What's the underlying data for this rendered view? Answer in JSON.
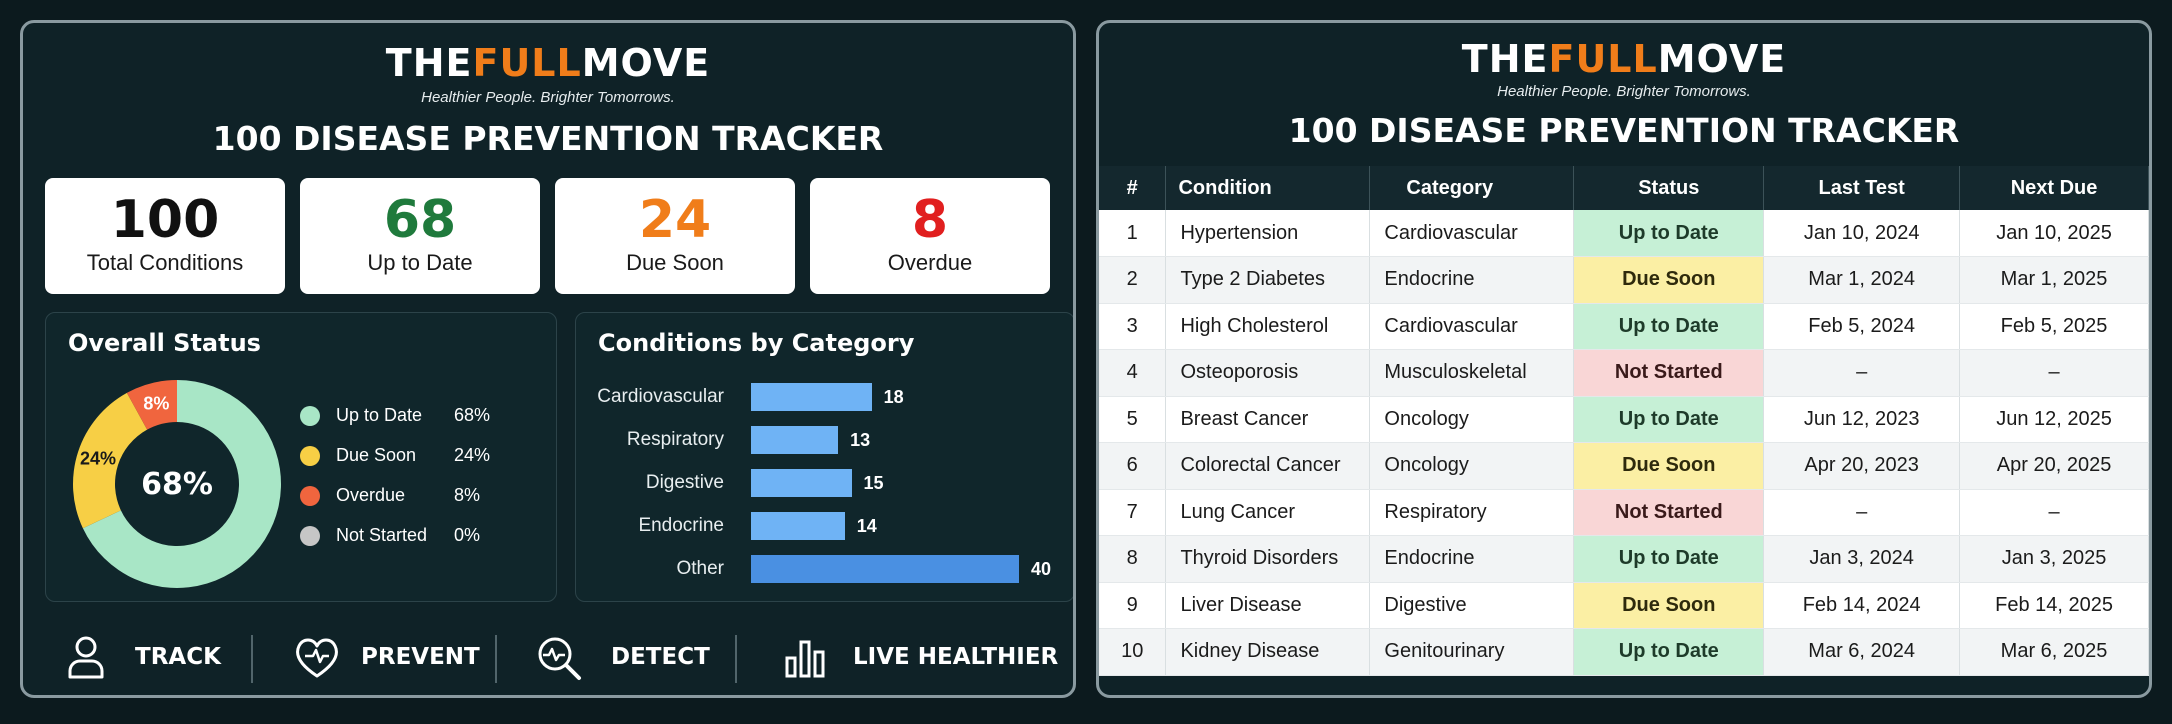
{
  "brand": {
    "part1": "THE",
    "part2": "FULL",
    "part3": "MOVE",
    "tagline": "Healthier People. Brighter Tomorrows."
  },
  "title": "100 DISEASE PREVENTION TRACKER",
  "colors": {
    "accent": "#f07d1a",
    "up_to_date": "#a8e6c6",
    "due_soon": "#f7cf45",
    "overdue": "#f0653e",
    "not_started": "#c6c6c6",
    "bar": "#6fb3f5"
  },
  "stats": [
    {
      "value": "100",
      "label": "Total Conditions",
      "color": "#111111"
    },
    {
      "value": "68",
      "label": "Up to Date",
      "color": "#1f7a3c"
    },
    {
      "value": "24",
      "label": "Due Soon",
      "color": "#f07d1a"
    },
    {
      "value": "8",
      "label": "Overdue",
      "color": "#e11f1f"
    }
  ],
  "overall": {
    "title": "Overall Status",
    "center_label": "68%",
    "legend": [
      {
        "name": "Up to Date",
        "value": "68%",
        "color": "#a8e6c6"
      },
      {
        "name": "Due Soon",
        "value": "24%",
        "color": "#f7cf45"
      },
      {
        "name": "Overdue",
        "value": "8%",
        "color": "#f0653e"
      },
      {
        "name": "Not Started",
        "value": "0%",
        "color": "#c6c6c6"
      }
    ],
    "slice_labels": [
      "24%",
      "8%"
    ]
  },
  "chart_data": [
    {
      "type": "pie",
      "title": "Overall Status",
      "categories": [
        "Up to Date",
        "Due Soon",
        "Overdue",
        "Not Started"
      ],
      "values": [
        68,
        24,
        8,
        0
      ],
      "colors": [
        "#a8e6c6",
        "#f7cf45",
        "#f0653e",
        "#c6c6c6"
      ],
      "legend": "right"
    },
    {
      "type": "bar",
      "title": "Conditions by Category",
      "categories": [
        "Cardiovascular",
        "Respiratory",
        "Digestive",
        "Endocrine",
        "Other"
      ],
      "values": [
        18,
        13,
        15,
        14,
        40
      ],
      "orientation": "horizontal",
      "xlim": [
        0,
        40
      ]
    }
  ],
  "footer": [
    {
      "label": "TRACK",
      "icon": "person-icon"
    },
    {
      "label": "PREVENT",
      "icon": "heart-pulse-icon"
    },
    {
      "label": "DETECT",
      "icon": "magnifier-pulse-icon"
    },
    {
      "label": "LIVE HEALTHIER",
      "icon": "bar-chart-icon"
    }
  ],
  "table": {
    "headers": [
      "#",
      "Condition",
      "Category",
      "Status",
      "Last Test",
      "Next Due"
    ],
    "rows": [
      [
        "1",
        "Hypertension",
        "Cardiovascular",
        "Up to Date",
        "Jan 10, 2024",
        "Jan 10, 2025"
      ],
      [
        "2",
        "Type 2 Diabetes",
        "Endocrine",
        "Due Soon",
        "Mar 1, 2024",
        "Mar 1, 2025"
      ],
      [
        "3",
        "High Cholesterol",
        "Cardiovascular",
        "Up to Date",
        "Feb 5, 2024",
        "Feb 5, 2025"
      ],
      [
        "4",
        "Osteoporosis",
        "Musculoskeletal",
        "Not Started",
        "–",
        "–"
      ],
      [
        "5",
        "Breast Cancer",
        "Oncology",
        "Up to Date",
        "Jun 12, 2023",
        "Jun 12, 2025"
      ],
      [
        "6",
        "Colorectal Cancer",
        "Oncology",
        "Due Soon",
        "Apr 20, 2023",
        "Apr 20, 2025"
      ],
      [
        "7",
        "Lung Cancer",
        "Respiratory",
        "Not Started",
        "–",
        "–"
      ],
      [
        "8",
        "Thyroid Disorders",
        "Endocrine",
        "Up to Date",
        "Jan 3, 2024",
        "Jan 3, 2025"
      ],
      [
        "9",
        "Liver Disease",
        "Digestive",
        "Due Soon",
        "Feb 14, 2024",
        "Feb 14, 2025"
      ],
      [
        "10",
        "Kidney Disease",
        "Genitourinary",
        "Up to Date",
        "Mar 6, 2024",
        "Mar 6, 2025"
      ]
    ]
  }
}
